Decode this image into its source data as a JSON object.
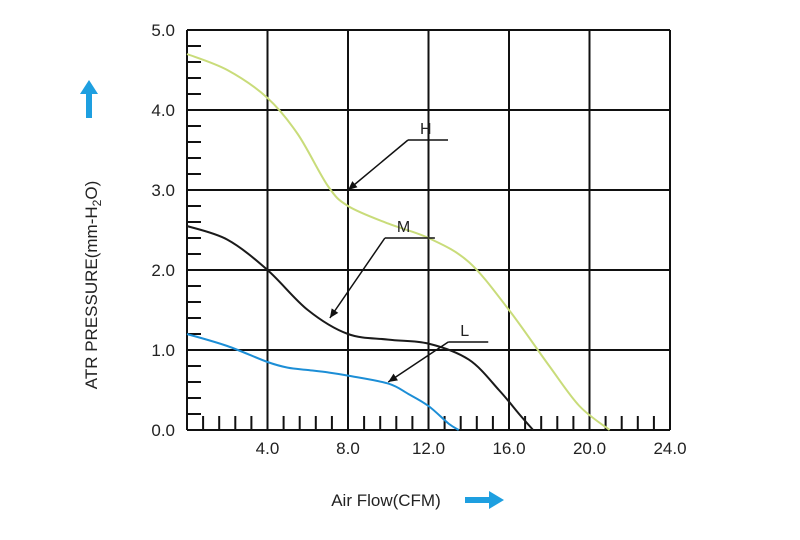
{
  "chart_data": {
    "type": "line",
    "xlabel": "Air Flow(CFM)",
    "ylabel_main": "ATR PRESSURE(mm-H",
    "ylabel_sub": "2",
    "ylabel_tail": "O)",
    "xlim": [
      0,
      24
    ],
    "ylim": [
      0,
      5
    ],
    "x_ticks": [
      "4.0",
      "8.0",
      "12.0",
      "16.0",
      "20.0",
      "24.0"
    ],
    "y_ticks": [
      "0.0",
      "1.0",
      "2.0",
      "3.0",
      "4.0",
      "5.0"
    ],
    "grid": true,
    "colors": {
      "H": "#c9dc7a",
      "M": "#1a1a1a",
      "L": "#1c8ed6",
      "arrow": "#1e9fe0"
    },
    "series": [
      {
        "name": "H",
        "x": [
          0,
          2,
          4,
          5.5,
          7,
          8,
          10,
          12,
          14,
          16,
          18,
          19.5,
          21
        ],
        "y": [
          4.7,
          4.5,
          4.15,
          3.7,
          3.05,
          2.8,
          2.58,
          2.4,
          2.1,
          1.5,
          0.8,
          0.3,
          0.0
        ]
      },
      {
        "name": "M",
        "x": [
          0,
          2,
          4,
          6,
          8,
          10,
          12,
          14,
          15.5,
          16.5,
          17.2
        ],
        "y": [
          2.55,
          2.38,
          2.0,
          1.5,
          1.2,
          1.13,
          1.08,
          0.88,
          0.5,
          0.2,
          0.0
        ]
      },
      {
        "name": "L",
        "x": [
          0,
          2,
          4,
          5,
          6,
          7,
          8,
          10,
          11,
          12,
          13,
          13.5
        ],
        "y": [
          1.2,
          1.05,
          0.85,
          0.78,
          0.75,
          0.72,
          0.68,
          0.58,
          0.45,
          0.3,
          0.08,
          0.0
        ]
      }
    ],
    "annotations": [
      {
        "text": "H",
        "x": 8.0,
        "y": 3.0
      },
      {
        "text": "M",
        "x": 7.1,
        "y": 1.4
      },
      {
        "text": "L",
        "x": 10.0,
        "y": 0.6
      }
    ]
  }
}
